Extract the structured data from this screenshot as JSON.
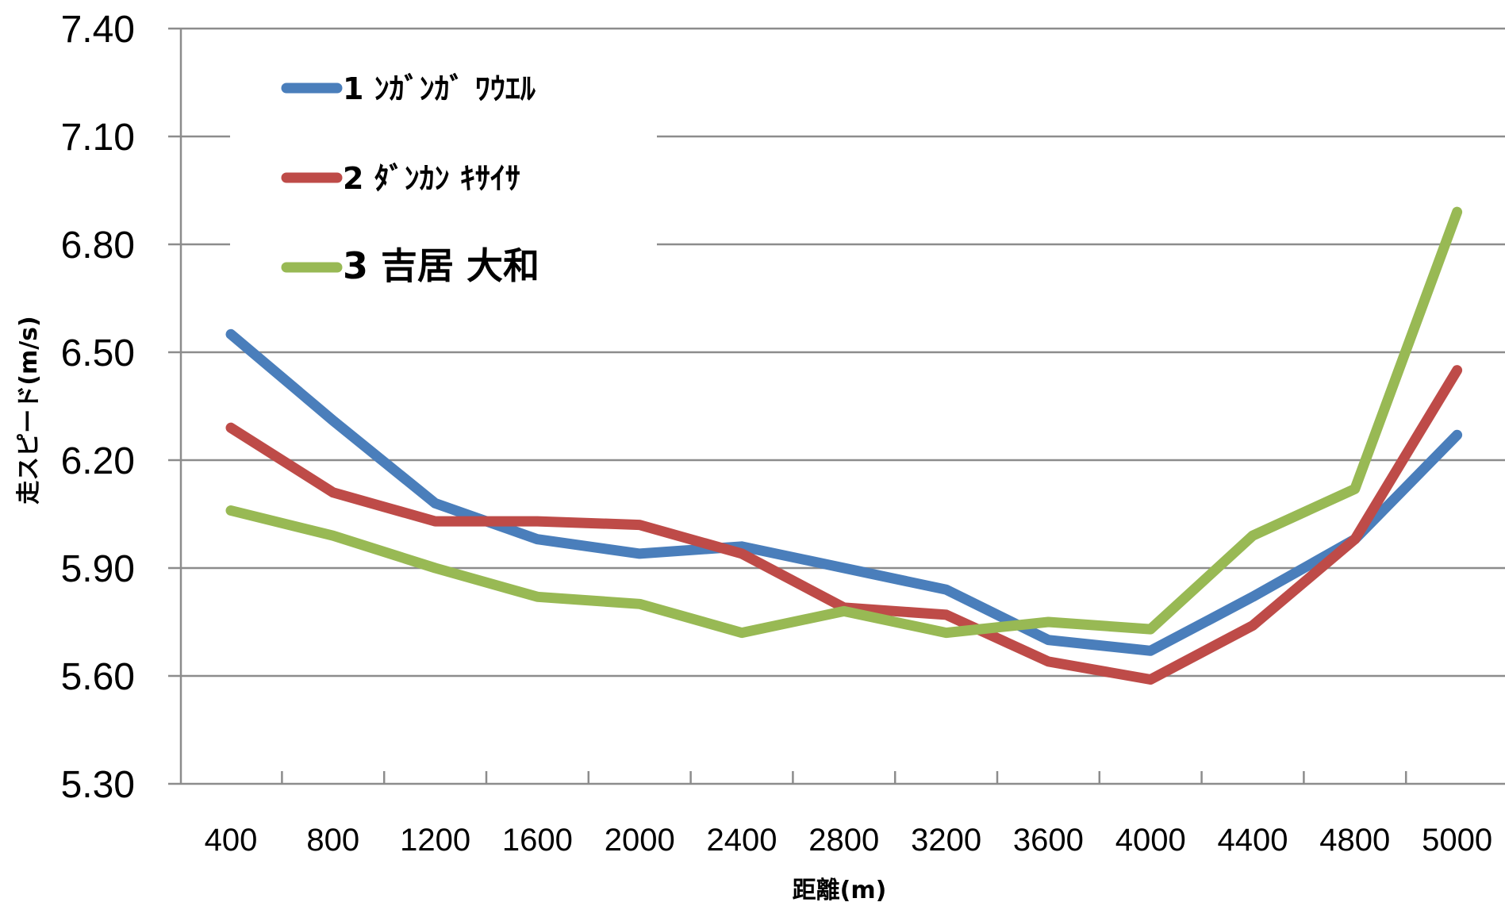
{
  "chart_data": {
    "type": "line",
    "title": "",
    "xlabel": "距離(m)",
    "ylabel": "走スピード(m/s)",
    "categories": [
      "400",
      "800",
      "1200",
      "1600",
      "2000",
      "2400",
      "2800",
      "3200",
      "3600",
      "4000",
      "4400",
      "4800",
      "5000"
    ],
    "ylim": [
      5.3,
      7.4
    ],
    "yticks": [
      "5.30",
      "5.60",
      "5.90",
      "6.20",
      "6.50",
      "6.80",
      "7.10",
      "7.40"
    ],
    "grid": true,
    "legend_position": "top-left",
    "series": [
      {
        "name": "1 ﾝｶﾞﾝｶﾞ ﾜｳｴﾙ",
        "color": "#4a7ebb",
        "values": [
          6.55,
          6.31,
          6.08,
          5.98,
          5.94,
          5.96,
          5.9,
          5.84,
          5.7,
          5.67,
          5.82,
          5.98,
          6.27
        ]
      },
      {
        "name": "2 ﾀﾞﾝｶﾝ ｷｻｲｻ",
        "color": "#be4b48",
        "values": [
          6.29,
          6.11,
          6.03,
          6.03,
          6.02,
          5.94,
          5.79,
          5.77,
          5.64,
          5.59,
          5.74,
          5.98,
          6.45
        ]
      },
      {
        "name": "3 吉居 大和",
        "color": "#98b954",
        "values": [
          6.06,
          5.99,
          5.9,
          5.82,
          5.8,
          5.72,
          5.78,
          5.72,
          5.75,
          5.73,
          5.99,
          6.12,
          6.89
        ]
      }
    ]
  }
}
